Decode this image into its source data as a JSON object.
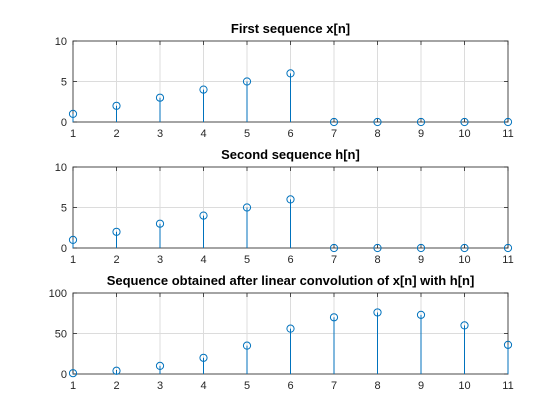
{
  "figure": {
    "background": "#ffffff",
    "stem_color": "#0072bd",
    "marker_fill": "none",
    "marker": "circle"
  },
  "chart_data": [
    {
      "type": "stem",
      "title": "First sequence x[n]",
      "xlabel": "",
      "ylabel": "",
      "x": [
        1,
        2,
        3,
        4,
        5,
        6,
        7,
        8,
        9,
        10,
        11
      ],
      "values": [
        1,
        2,
        3,
        4,
        5,
        6,
        0,
        0,
        0,
        0,
        0
      ],
      "xlim": [
        1,
        11
      ],
      "ylim": [
        0,
        10
      ],
      "xticks": [
        "1",
        "2",
        "3",
        "4",
        "5",
        "6",
        "7",
        "8",
        "9",
        "10",
        "11"
      ],
      "yticks": [
        "0",
        "5",
        "10"
      ],
      "grid": true
    },
    {
      "type": "stem",
      "title": "Second sequence h[n]",
      "xlabel": "",
      "ylabel": "",
      "x": [
        1,
        2,
        3,
        4,
        5,
        6,
        7,
        8,
        9,
        10,
        11
      ],
      "values": [
        1,
        2,
        3,
        4,
        5,
        6,
        0,
        0,
        0,
        0,
        0
      ],
      "xlim": [
        1,
        11
      ],
      "ylim": [
        0,
        10
      ],
      "xticks": [
        "1",
        "2",
        "3",
        "4",
        "5",
        "6",
        "7",
        "8",
        "9",
        "10",
        "11"
      ],
      "yticks": [
        "0",
        "5",
        "10"
      ],
      "grid": true
    },
    {
      "type": "stem",
      "title": "Sequence obtained after linear convolution of x[n] with h[n]",
      "xlabel": "",
      "ylabel": "",
      "x": [
        1,
        2,
        3,
        4,
        5,
        6,
        7,
        8,
        9,
        10,
        11
      ],
      "values": [
        1,
        4,
        10,
        20,
        35,
        56,
        70,
        76,
        73,
        60,
        36
      ],
      "xlim": [
        1,
        11
      ],
      "ylim": [
        0,
        100
      ],
      "xticks": [
        "1",
        "2",
        "3",
        "4",
        "5",
        "6",
        "7",
        "8",
        "9",
        "10",
        "11"
      ],
      "yticks": [
        "0",
        "50",
        "100"
      ],
      "grid": true
    }
  ]
}
